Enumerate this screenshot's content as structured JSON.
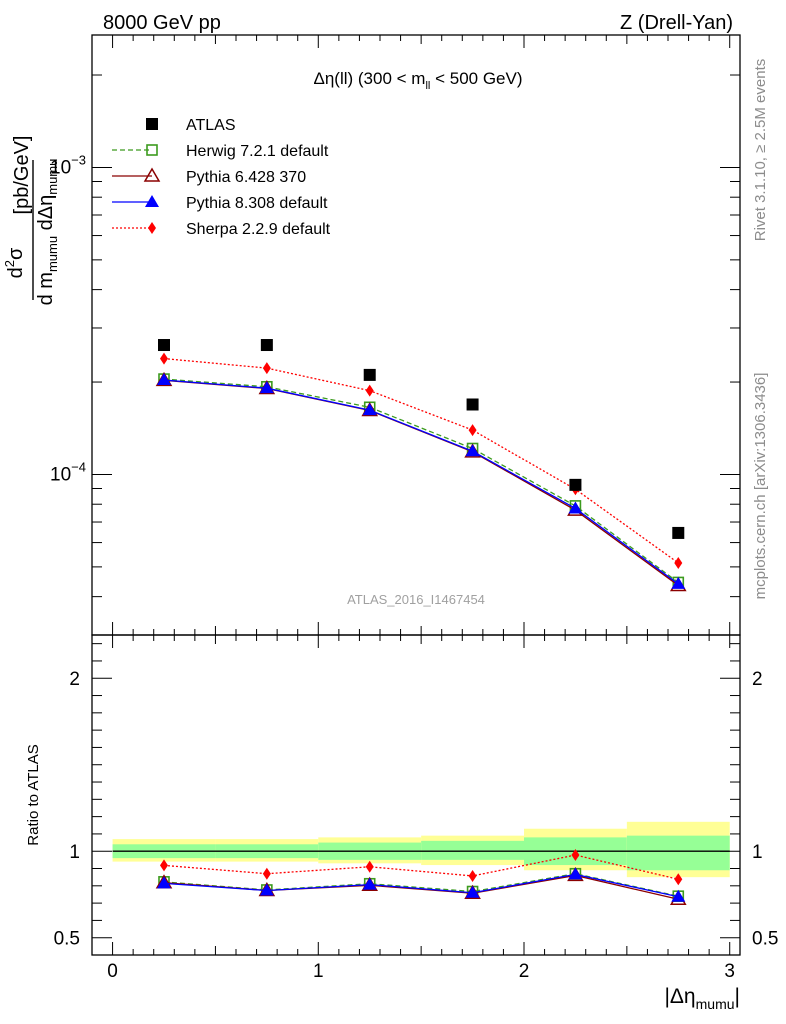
{
  "header": {
    "left": "8000 GeV pp",
    "right": "Z (Drell-Yan)"
  },
  "side_text": {
    "rivet": "Rivet 3.1.10, ≥ 2.5M events",
    "mcplots": "mcplots.cern.ch [arXiv:1306.3436]"
  },
  "watermark": "ATLAS_2016_I1467454",
  "colors": {
    "atlas": "#000000",
    "herwig": "#3c9b1e",
    "pythia6": "#8b0000",
    "pythia8": "#0000ff",
    "sherpa": "#ff0000",
    "band_outer": "#ffff96",
    "band_inner": "#96ff96"
  },
  "chart_data": [
    {
      "type": "scatter",
      "panel": "main",
      "title": "Δη(ll) (300 < m_ll < 500 GeV)",
      "ylabel": "d²σ / d m_mumu dΔη_mumu [pb/GeV]",
      "yscale": "log",
      "ylim": [
        3e-05,
        0.0027
      ],
      "xlim": [
        -0.1,
        3.05
      ],
      "y_tick_labels": [
        "10^-4",
        "10^-3"
      ],
      "legend_position": "top-left",
      "x": [
        0.25,
        0.75,
        1.25,
        1.75,
        2.25,
        2.75
      ],
      "series": [
        {
          "name": "ATLAS",
          "marker": "square",
          "color": "#000000",
          "values": [
            0.000264,
            0.000264,
            0.000211,
            0.000169,
            9.25e-05,
            6.45e-05
          ]
        },
        {
          "name": "Herwig 7.2.1 default",
          "marker": "open-square",
          "line": "dashed",
          "color": "#3c9b1e",
          "values": [
            0.0002045,
            0.000193,
            0.0001655,
            0.0001215,
            7.9e-05,
            4.45e-05
          ]
        },
        {
          "name": "Pythia 6.428 370",
          "marker": "open-triangle",
          "line": "solid",
          "color": "#8b0000",
          "values": [
            0.0002025,
            0.0001905,
            0.0001615,
            0.0001185,
            7.65e-05,
            4.35e-05
          ]
        },
        {
          "name": "Pythia 8.308 default",
          "marker": "triangle",
          "line": "solid",
          "color": "#0000ff",
          "values": [
            0.000203,
            0.000191,
            0.000162,
            0.000119,
            7.75e-05,
            4.4e-05
          ]
        },
        {
          "name": "Sherpa 2.2.9 default",
          "marker": "diamond",
          "line": "dotted",
          "color": "#ff0000",
          "values": [
            0.0002385,
            0.000222,
            0.0001875,
            0.0001395,
            8.95e-05,
            5.15e-05
          ]
        }
      ]
    },
    {
      "type": "line",
      "panel": "ratio",
      "ylabel": "Ratio to ATLAS",
      "xlabel": "|Δη_mumu|",
      "ylim": [
        0.4,
        2.25
      ],
      "xlim": [
        -0.1,
        3.05
      ],
      "x_tick_labels": [
        "0",
        "1",
        "2",
        "3"
      ],
      "y_tick_labels": [
        "0.5",
        "1",
        "2"
      ],
      "x": [
        0.25,
        0.75,
        1.25,
        1.75,
        2.25,
        2.75
      ],
      "bins": [
        [
          0,
          0.5
        ],
        [
          0.5,
          1.0
        ],
        [
          1.0,
          1.5
        ],
        [
          1.5,
          2.0
        ],
        [
          2.0,
          2.5
        ],
        [
          2.5,
          3.0
        ]
      ],
      "band_outer": [
        [
          0.94,
          1.07
        ],
        [
          0.94,
          1.07
        ],
        [
          0.93,
          1.08
        ],
        [
          0.92,
          1.09
        ],
        [
          0.89,
          1.13
        ],
        [
          0.85,
          1.17
        ]
      ],
      "band_inner": [
        [
          0.96,
          1.04
        ],
        [
          0.96,
          1.04
        ],
        [
          0.95,
          1.05
        ],
        [
          0.95,
          1.06
        ],
        [
          0.92,
          1.08
        ],
        [
          0.89,
          1.09
        ]
      ],
      "series": [
        {
          "name": "Herwig 7.2.1 default",
          "values": [
            0.823,
            0.776,
            0.812,
            0.767,
            0.87,
            0.74
          ]
        },
        {
          "name": "Pythia 6.428 370",
          "values": [
            0.818,
            0.773,
            0.803,
            0.757,
            0.86,
            0.722
          ]
        },
        {
          "name": "Pythia 8.308 default",
          "values": [
            0.814,
            0.773,
            0.807,
            0.76,
            0.866,
            0.737
          ]
        },
        {
          "name": "Sherpa 2.2.9 default",
          "values": [
            0.918,
            0.87,
            0.91,
            0.857,
            0.978,
            0.838
          ]
        }
      ]
    }
  ]
}
